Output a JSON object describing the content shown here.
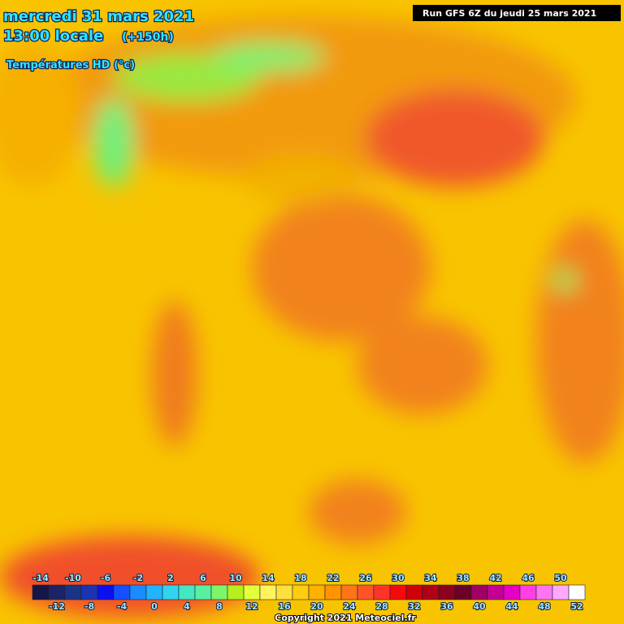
{
  "header": {
    "date": "mercredi 31 mars 2021",
    "time": "13:00 locale",
    "lead": "(+150h)",
    "parameter": "Températures HD (°c)",
    "run": "Run GFS 6Z du jeudi 25 mars 2021"
  },
  "legend": {
    "values": [
      -14,
      -12,
      -10,
      -8,
      -6,
      -4,
      -2,
      0,
      2,
      4,
      6,
      8,
      10,
      12,
      14,
      16,
      18,
      20,
      22,
      24,
      26,
      28,
      30,
      32,
      34,
      36,
      38,
      40,
      42,
      44,
      46,
      48,
      50,
      52
    ],
    "colors": [
      "#14164a",
      "#1c2468",
      "#1a3488",
      "#1c34b4",
      "#0a10f0",
      "#1450ff",
      "#1a8cff",
      "#22b4ff",
      "#30d4f0",
      "#44e6c4",
      "#58f0a0",
      "#7cf46c",
      "#b4f020",
      "#e4ff3c",
      "#fff45c",
      "#ffe040",
      "#ffcc10",
      "#ffb000",
      "#ff9400",
      "#ff7418",
      "#ff5428",
      "#ff3428",
      "#f40a0a",
      "#d00008",
      "#b00018",
      "#8c0020",
      "#6c0028",
      "#a00064",
      "#c40094",
      "#e400c4",
      "#ff40e4",
      "#ff74f0",
      "#ffa8ff",
      "#ffffff"
    ]
  },
  "footer": {
    "copyright": "Copyright 2021 Meteociel.fr"
  }
}
